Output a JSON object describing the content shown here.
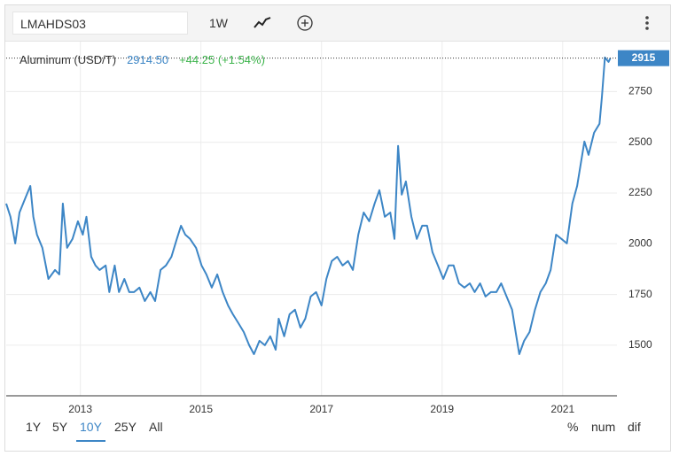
{
  "toolbar": {
    "symbol": "LMAHDS03",
    "interval": "1W"
  },
  "chart_data": {
    "type": "line",
    "title": "Aluminum (USD/T)",
    "price": "2914.50",
    "change": "+44.25 (+1.54%)",
    "marker": {
      "value": 2914.5,
      "label": "2915"
    },
    "xlim": [
      2011.77,
      2021.9
    ],
    "xticks": [
      2013,
      2015,
      2017,
      2019,
      2021
    ],
    "ylim": [
      1251,
      2996
    ],
    "yticks": [
      1500,
      1750,
      2000,
      2250,
      2500,
      2750
    ],
    "grid": true,
    "series": [
      {
        "name": "Aluminum (USD/T)",
        "color": "#3d86c6",
        "x": [
          2011.77,
          2011.84,
          2011.92,
          2011.99,
          2012.08,
          2012.17,
          2012.22,
          2012.28,
          2012.37,
          2012.47,
          2012.58,
          2012.65,
          2012.71,
          2012.78,
          2012.87,
          2012.96,
          2013.04,
          2013.1,
          2013.18,
          2013.25,
          2013.32,
          2013.42,
          2013.48,
          2013.57,
          2013.64,
          2013.73,
          2013.81,
          2013.89,
          2013.98,
          2014.07,
          2014.16,
          2014.24,
          2014.33,
          2014.42,
          2014.51,
          2014.6,
          2014.67,
          2014.74,
          2014.82,
          2014.92,
          2015.01,
          2015.09,
          2015.18,
          2015.27,
          2015.36,
          2015.45,
          2015.53,
          2015.62,
          2015.71,
          2015.8,
          2015.88,
          2015.97,
          2016.06,
          2016.15,
          2016.24,
          2016.29,
          2016.38,
          2016.47,
          2016.56,
          2016.65,
          2016.73,
          2016.82,
          2016.91,
          2017.0,
          2017.08,
          2017.17,
          2017.26,
          2017.35,
          2017.44,
          2017.52,
          2017.61,
          2017.7,
          2017.79,
          2017.88,
          2017.96,
          2018.05,
          2018.14,
          2018.21,
          2018.27,
          2018.33,
          2018.4,
          2018.49,
          2018.58,
          2018.67,
          2018.75,
          2018.84,
          2018.93,
          2019.02,
          2019.11,
          2019.19,
          2019.28,
          2019.37,
          2019.46,
          2019.54,
          2019.63,
          2019.72,
          2019.81,
          2019.9,
          2019.98,
          2020.07,
          2020.16,
          2020.22,
          2020.28,
          2020.36,
          2020.45,
          2020.54,
          2020.63,
          2020.72,
          2020.8,
          2020.89,
          2020.98,
          2021.07,
          2021.16,
          2021.24,
          2021.3,
          2021.36,
          2021.43,
          2021.52,
          2021.61,
          2021.65,
          2021.7,
          2021.76,
          2021.79
        ],
        "values": [
          2198,
          2133,
          2002,
          2154,
          2220,
          2285,
          2133,
          2045,
          1980,
          1827,
          1871,
          1849,
          2198,
          1980,
          2024,
          2111,
          2045,
          2133,
          1936,
          1893,
          1871,
          1893,
          1762,
          1893,
          1762,
          1827,
          1762,
          1762,
          1784,
          1718,
          1762,
          1718,
          1871,
          1893,
          1936,
          2024,
          2089,
          2045,
          2024,
          1980,
          1893,
          1849,
          1784,
          1849,
          1762,
          1696,
          1653,
          1609,
          1565,
          1500,
          1456,
          1522,
          1500,
          1544,
          1478,
          1631,
          1544,
          1653,
          1675,
          1587,
          1631,
          1740,
          1762,
          1696,
          1827,
          1915,
          1936,
          1893,
          1915,
          1871,
          2045,
          2154,
          2111,
          2198,
          2264,
          2133,
          2154,
          2024,
          2482,
          2242,
          2307,
          2133,
          2024,
          2089,
          2089,
          1958,
          1893,
          1827,
          1893,
          1893,
          1805,
          1784,
          1805,
          1762,
          1805,
          1740,
          1762,
          1762,
          1805,
          1740,
          1675,
          1565,
          1456,
          1522,
          1565,
          1675,
          1762,
          1805,
          1871,
          2045,
          2024,
          2002,
          2198,
          2285,
          2395,
          2504,
          2438,
          2547,
          2591,
          2722,
          2918,
          2896,
          2914.5
        ]
      }
    ]
  },
  "ranges": [
    "1Y",
    "5Y",
    "10Y",
    "25Y",
    "All"
  ],
  "selected_range": "10Y",
  "modes": [
    "%",
    "num",
    "dif"
  ]
}
